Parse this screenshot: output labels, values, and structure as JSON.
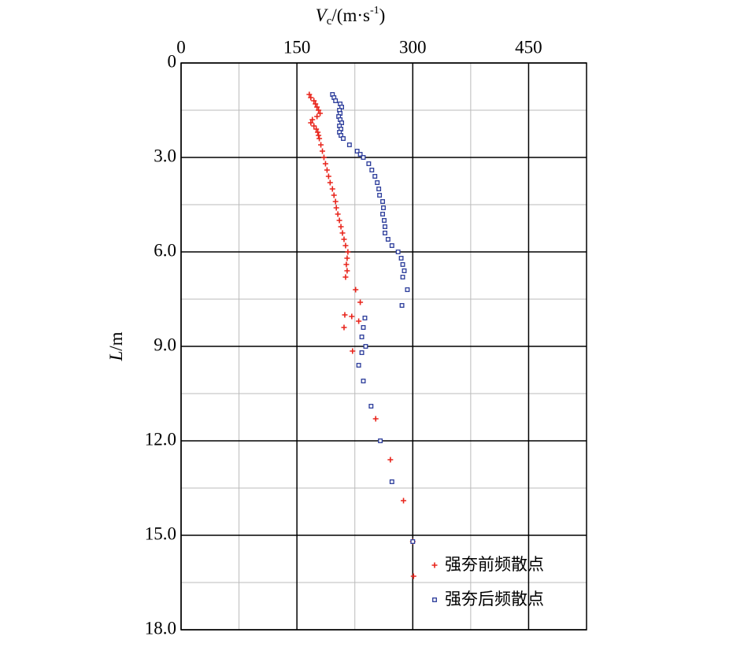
{
  "chart_data": {
    "type": "scatter",
    "x_label": [
      "V",
      "c",
      "/(m·s",
      "-1",
      ")"
    ],
    "y_label": [
      "L",
      "/m"
    ],
    "xlim": [
      0,
      525
    ],
    "xticks": [
      0,
      150,
      300,
      450
    ],
    "ylim": [
      0,
      18
    ],
    "yticks": [
      0,
      {
        "value": 3,
        "label": "3.0"
      },
      {
        "value": 6,
        "label": "6.0"
      },
      {
        "value": 9,
        "label": "9.0"
      },
      {
        "value": 12,
        "label": "12.0"
      },
      {
        "value": 15,
        "label": "15.0"
      },
      {
        "value": 18,
        "label": "18.0"
      }
    ],
    "y_inverted": true,
    "x_axis_top": true,
    "grid": true,
    "minor_grid": true,
    "legend": "lower right",
    "series": [
      {
        "name": "强夯前频散点",
        "color": "#e8251c",
        "marker": "plus",
        "x": [
          166,
          168,
          172,
          174,
          176,
          178,
          180,
          176,
          170,
          168,
          172,
          175,
          177,
          178,
          179,
          181,
          183,
          185,
          187,
          189,
          191,
          193,
          196,
          198,
          200,
          201,
          203,
          205,
          207,
          209,
          211,
          213,
          216,
          215,
          214,
          215,
          213,
          226,
          232,
          212,
          221,
          230,
          211,
          222,
          252,
          271,
          288,
          300,
          301
        ],
        "values": [
          1.0,
          1.1,
          1.2,
          1.3,
          1.4,
          1.5,
          1.6,
          1.7,
          1.8,
          1.9,
          2.0,
          2.1,
          2.2,
          2.3,
          2.4,
          2.6,
          2.8,
          3.0,
          3.2,
          3.4,
          3.6,
          3.8,
          4.0,
          4.2,
          4.4,
          4.6,
          4.8,
          5.0,
          5.2,
          5.4,
          5.6,
          5.8,
          6.0,
          6.2,
          6.4,
          6.6,
          6.8,
          7.2,
          7.6,
          8.0,
          8.05,
          8.2,
          8.4,
          9.15,
          11.3,
          12.6,
          13.9,
          15.2,
          16.3
        ]
      },
      {
        "name": "强夯后频散点",
        "color": "#2a3b9a",
        "marker": "square",
        "x": [
          196,
          198,
          200,
          206,
          208,
          205,
          206,
          204,
          206,
          208,
          205,
          207,
          205,
          207,
          210,
          218,
          228,
          232,
          236,
          243,
          247,
          251,
          254,
          256,
          257,
          261,
          262,
          261,
          263,
          264,
          264,
          268,
          273,
          281,
          285,
          287,
          289,
          287,
          293,
          286,
          238,
          236,
          234,
          239,
          234,
          230,
          236,
          246,
          258,
          273,
          300
        ],
        "values": [
          1.0,
          1.1,
          1.2,
          1.3,
          1.4,
          1.5,
          1.6,
          1.7,
          1.8,
          1.9,
          2.0,
          2.1,
          2.2,
          2.3,
          2.4,
          2.6,
          2.8,
          2.9,
          3.0,
          3.2,
          3.4,
          3.6,
          3.8,
          4.0,
          4.2,
          4.4,
          4.6,
          4.8,
          5.0,
          5.2,
          5.4,
          5.6,
          5.8,
          6.0,
          6.2,
          6.4,
          6.6,
          6.8,
          7.2,
          7.7,
          8.1,
          8.4,
          8.7,
          9.0,
          9.2,
          9.6,
          10.1,
          10.9,
          12.0,
          13.3,
          15.2
        ]
      }
    ]
  }
}
